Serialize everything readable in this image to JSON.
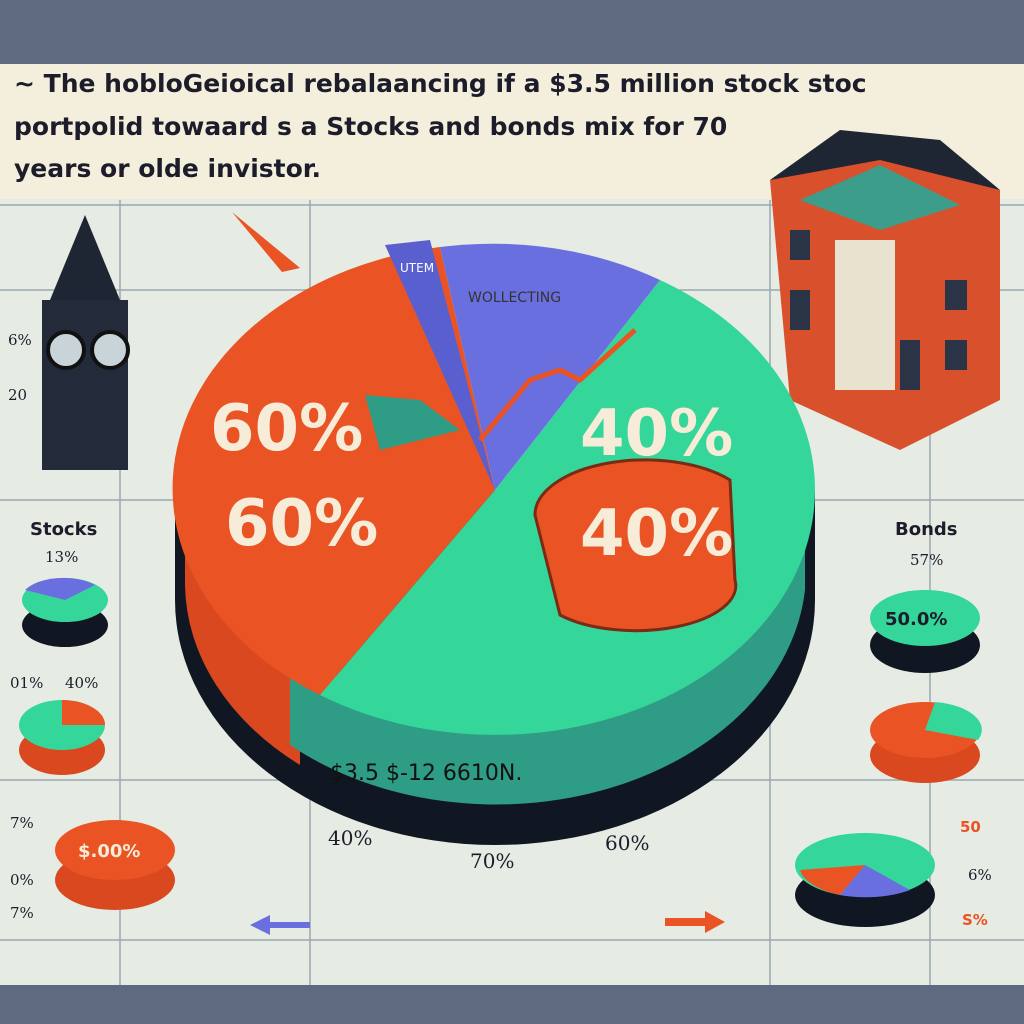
{
  "title": {
    "lines": [
      "~ The hobloGeioical rebalaancing if a $3.5 million stock stoc",
      "portpolid towaard s a Stocks and bonds mix for 70",
      "years or olde invistor."
    ]
  },
  "main_pie": {
    "labels": [
      "60%",
      "60%",
      "40%",
      "40%"
    ],
    "wedge_labels": [
      "UTEM",
      "WOLLECTING"
    ],
    "caption": "$3.5 $-12 6610N.",
    "axis_labels": [
      "40%",
      "70%",
      "60%"
    ]
  },
  "left_panel": {
    "axis_labels": [
      "6%",
      "20"
    ],
    "legend": "Stocks",
    "legend_pct": "13%",
    "pie_labels": [
      "01%",
      "40%"
    ],
    "pie_value": "$.00%",
    "small": [
      "7%",
      "0%",
      "7%"
    ]
  },
  "right_panel": {
    "legend": "Bonds",
    "legend_pct": "57%",
    "pie_value": "50.0%",
    "small": [
      "50",
      "6%",
      "S%"
    ]
  }
}
